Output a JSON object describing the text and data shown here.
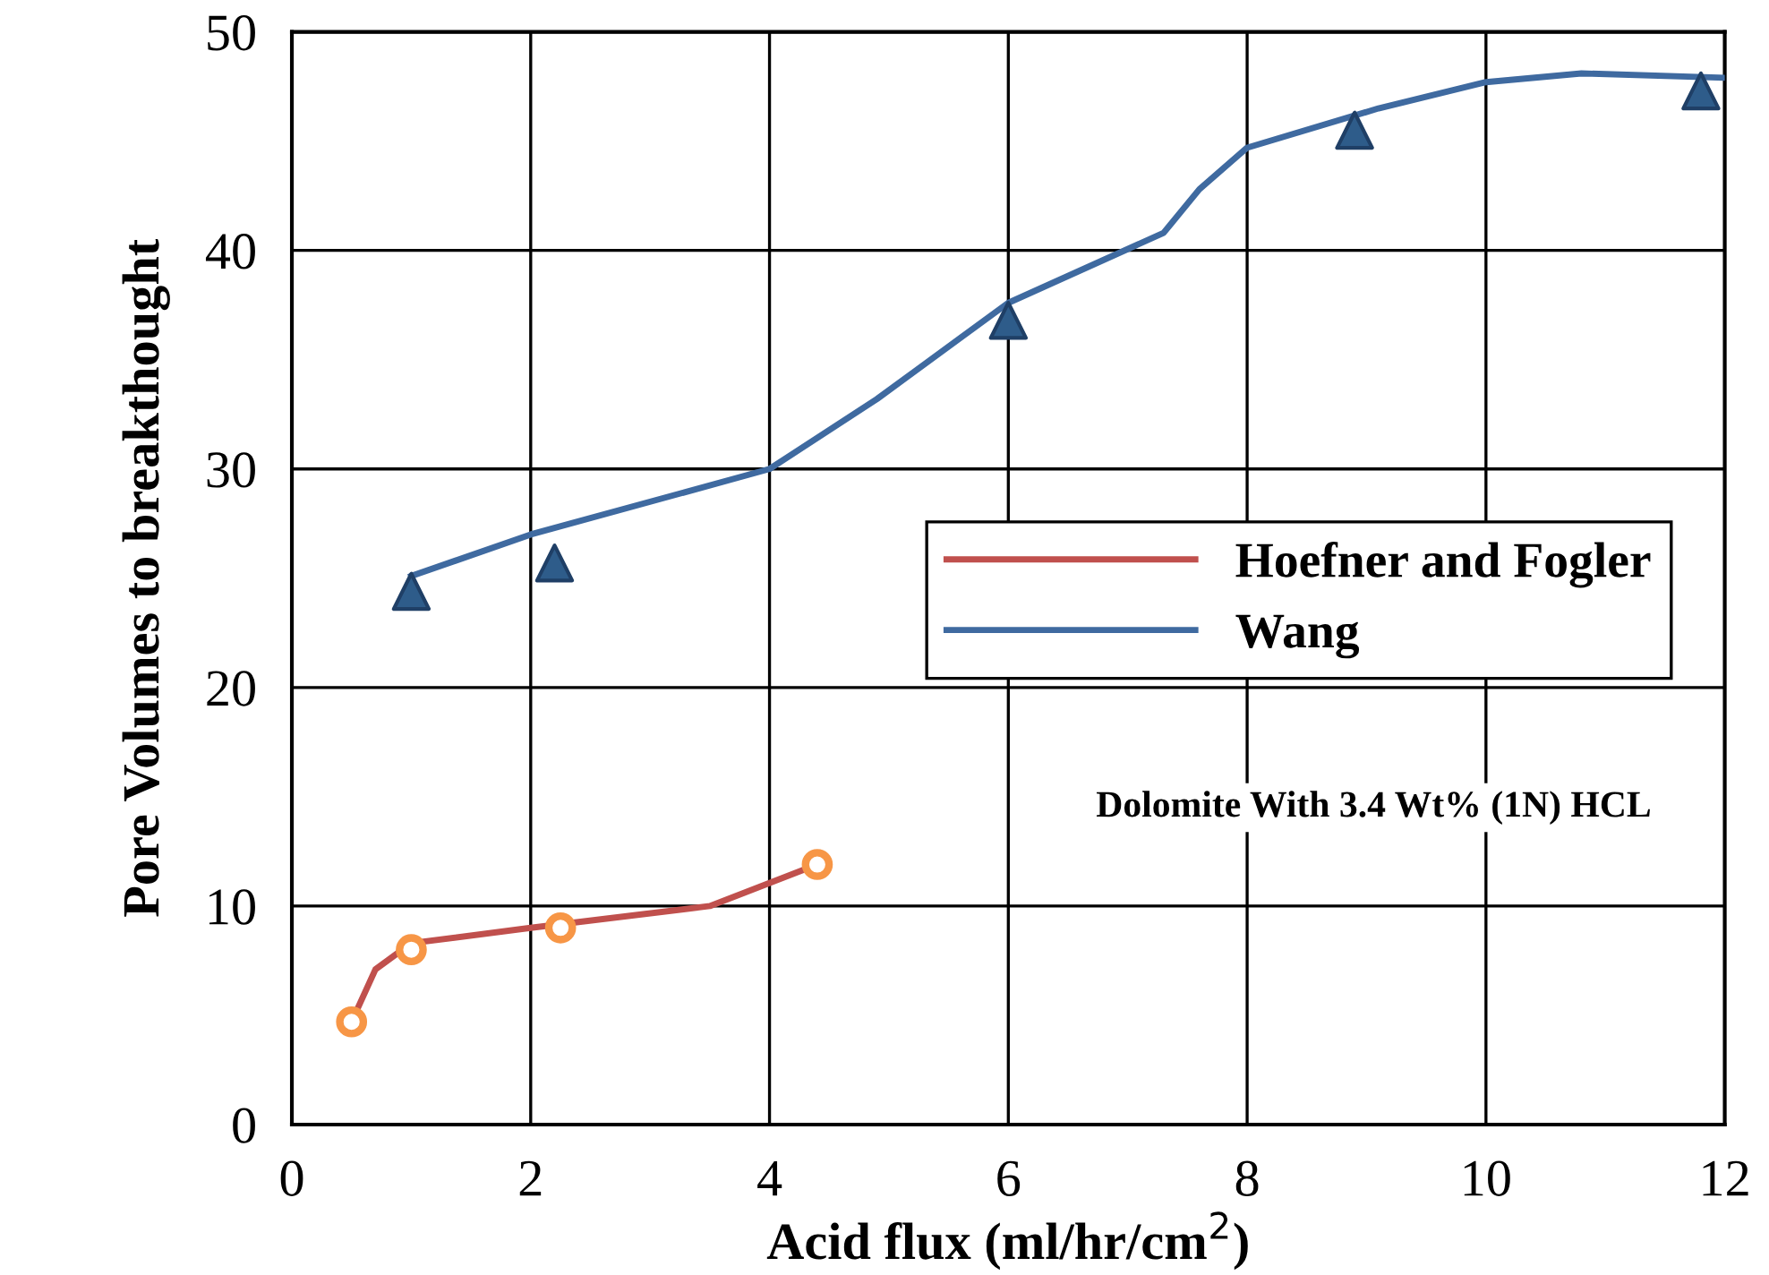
{
  "chart_data": {
    "type": "line",
    "xlabel": "Acid flux (ml/hr/cm$^{2}$)",
    "ylabel": "Pore Volumes to breakthought",
    "xlim": [
      0,
      12
    ],
    "ylim": [
      0,
      50
    ],
    "xticks": [
      0,
      2,
      4,
      6,
      8,
      10,
      12
    ],
    "yticks": [
      0,
      10,
      20,
      30,
      40,
      50
    ],
    "grid": true,
    "legend": "right",
    "annotations": [
      "Dolomite With 3.4 Wt% (1N) HCL"
    ],
    "series": [
      {
        "type": "scatter",
        "marker": "circle",
        "color": "#f79646",
        "x": [
          0.5,
          1.0,
          2.25,
          4.4
        ],
        "values": [
          4.7,
          8.0,
          9.0,
          11.9
        ]
      },
      {
        "name": "Hoefner and Fogler",
        "marker": "none",
        "color": "#c0504d",
        "x": [
          0.5,
          0.7,
          1.0,
          2.0,
          3.5,
          4.4
        ],
        "values": [
          4.7,
          7.1,
          8.3,
          9.0,
          10.0,
          11.9
        ]
      },
      {
        "type": "scatter",
        "marker": "triangle",
        "color": "#2e5c8a",
        "x": [
          1.0,
          2.2,
          6.0,
          8.9,
          11.8
        ],
        "values": [
          24.4,
          25.7,
          36.8,
          45.5,
          47.3
        ]
      },
      {
        "name": "Wang",
        "marker": "none",
        "color": "#3f6aa0",
        "x": [
          1.0,
          2.0,
          4.0,
          4.9,
          5.6,
          6.0,
          7.3,
          7.6,
          8.0,
          9.1,
          10.0,
          10.8,
          12.0
        ],
        "values": [
          25.1,
          27.0,
          30.0,
          33.2,
          36.0,
          37.6,
          40.8,
          42.8,
          44.7,
          46.5,
          47.7,
          48.1,
          47.9
        ]
      }
    ]
  }
}
